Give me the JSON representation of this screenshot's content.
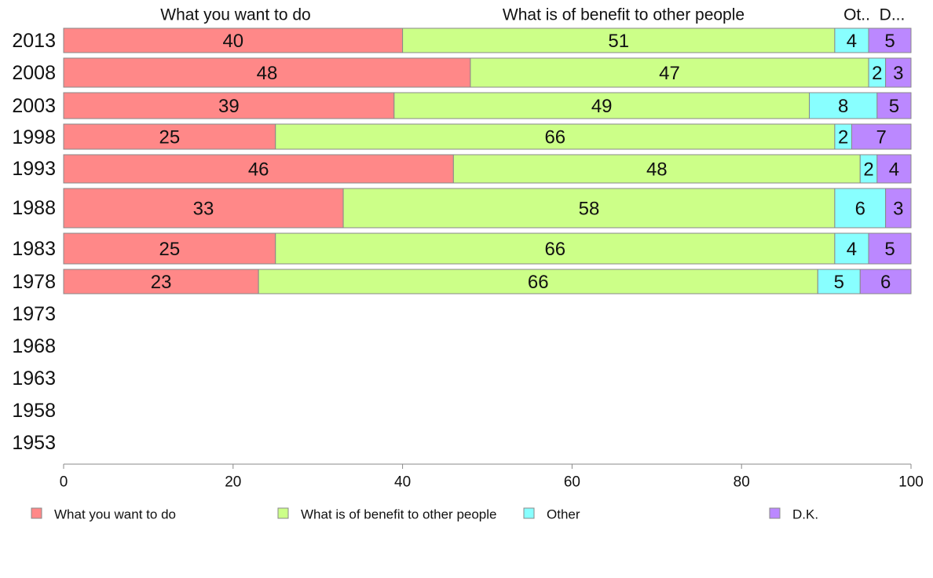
{
  "chart_data": {
    "type": "bar",
    "orientation": "horizontal",
    "stacked": true,
    "categories": [
      "2013",
      "2008",
      "2003",
      "1998",
      "1993",
      "1988",
      "1983",
      "1978",
      "1973",
      "1968",
      "1963",
      "1958",
      "1953"
    ],
    "series": [
      {
        "name": "What you want to do",
        "color": "#ff8888",
        "values": [
          40,
          48,
          39,
          25,
          46,
          33,
          25,
          23,
          null,
          null,
          null,
          null,
          null
        ]
      },
      {
        "name": "What is of benefit to other people",
        "color": "#ccff88",
        "values": [
          51,
          47,
          49,
          66,
          48,
          58,
          66,
          66,
          null,
          null,
          null,
          null,
          null
        ]
      },
      {
        "name": "Other",
        "color": "#88ffff",
        "values": [
          4,
          2,
          8,
          2,
          2,
          6,
          4,
          5,
          null,
          null,
          null,
          null,
          null
        ]
      },
      {
        "name": "D.K.",
        "color": "#bb88ff",
        "values": [
          5,
          3,
          5,
          7,
          4,
          3,
          5,
          6,
          null,
          null,
          null,
          null,
          null
        ]
      }
    ],
    "top_labels": [
      "What you want to do",
      "What is of benefit to other people",
      "Ot..",
      "D..."
    ],
    "xlim": [
      0,
      100
    ],
    "x_ticks": [
      "0",
      "20",
      "40",
      "60",
      "80",
      "100"
    ],
    "title": "",
    "xlabel": "",
    "ylabel": "",
    "grid": false,
    "legend_position": "bottom"
  }
}
